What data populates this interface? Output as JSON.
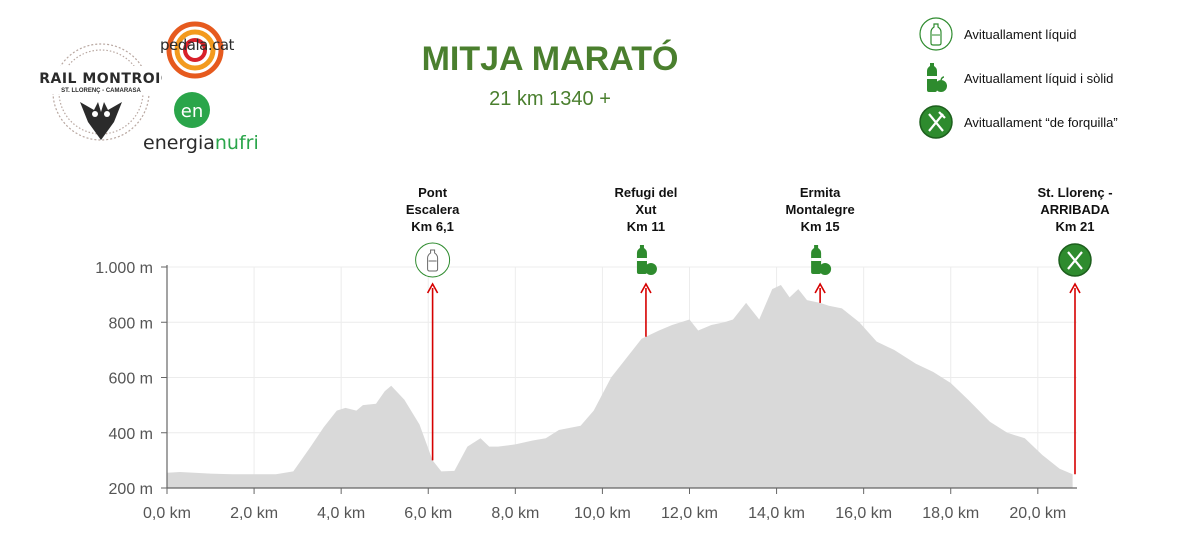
{
  "header": {
    "title": "MITJA MARATÓ",
    "subtitle": "21 km 1340 +"
  },
  "logos": {
    "trail_name": "TRAIL MONTROIG",
    "trail_place": "ST. LLORENÇ - CAMARASA",
    "pedala": "pedala.cat",
    "energia_prefix": "energia",
    "energia_suffix": "nufri",
    "energia_mark": "en"
  },
  "legend": [
    {
      "icon": "water-bottle-icon",
      "label": "Avituallament líquid"
    },
    {
      "icon": "bottle-apple-icon",
      "label": "Avituallament líquid i sòlid"
    },
    {
      "icon": "fork-knife-icon",
      "label": "Avituallament “de forquilla”"
    }
  ],
  "colors": {
    "title_green": "#4a7f2e",
    "profile_fill": "#d9d9d9",
    "marker_red": "#d60000",
    "icon_green": "#2e8b2e"
  },
  "chart_data": {
    "type": "area",
    "title": "MITJA MARATÓ",
    "subtitle": "21 km 1340 +",
    "xlabel": "",
    "ylabel": "",
    "xlim": [
      0,
      20.9
    ],
    "ylim": [
      200,
      1000
    ],
    "x_ticks": [
      0,
      2,
      4,
      6,
      8,
      10,
      12,
      14,
      16,
      18,
      20
    ],
    "x_tick_labels": [
      "0,0 km",
      "2,0 km",
      "4,0 km",
      "6,0 km",
      "8,0 km",
      "10,0 km",
      "12,0 km",
      "14,0 km",
      "16,0 km",
      "18,0 km",
      "20,0 km"
    ],
    "y_ticks": [
      200,
      400,
      600,
      800,
      1000
    ],
    "y_tick_labels": [
      "200 m",
      "400 m",
      "600 m",
      "800 m",
      "1.000 m"
    ],
    "grid": true,
    "series": [
      {
        "x": [
          0,
          0.3,
          1,
          1.5,
          2,
          2.5,
          2.9,
          3.3,
          3.6,
          3.9,
          4.1,
          4.35,
          4.5,
          4.8,
          5.0,
          5.15,
          5.45,
          5.8,
          6.1,
          6.3,
          6.6,
          6.9,
          7.2,
          7.4,
          7.6,
          8.0,
          8.4,
          8.7,
          9.0,
          9.5,
          9.8,
          10.2,
          10.5,
          10.9,
          11.3,
          11.6,
          11.8,
          12.0,
          12.2,
          12.5,
          12.8,
          13.0,
          13.3,
          13.6,
          13.9,
          14.1,
          14.3,
          14.5,
          14.7,
          15.0,
          15.2,
          15.5,
          15.9,
          16.3,
          16.7,
          17.2,
          17.6,
          18.0,
          18.4,
          18.9,
          19.3,
          19.7,
          20.1,
          20.5,
          20.8
        ],
        "values": [
          255,
          258,
          252,
          250,
          250,
          250,
          260,
          350,
          420,
          480,
          490,
          480,
          500,
          505,
          550,
          570,
          520,
          430,
          300,
          260,
          262,
          350,
          380,
          350,
          350,
          358,
          372,
          380,
          410,
          425,
          480,
          600,
          660,
          740,
          770,
          790,
          800,
          810,
          770,
          790,
          800,
          810,
          870,
          810,
          920,
          935,
          890,
          920,
          880,
          870,
          860,
          850,
          800,
          730,
          700,
          650,
          620,
          580,
          520,
          440,
          400,
          380,
          320,
          270,
          250
        ]
      }
    ],
    "markers": [
      {
        "x": 6.1,
        "label_lines": [
          "Pont",
          "Escalera",
          "Km 6,1"
        ],
        "icon": "water-bottle-icon"
      },
      {
        "x": 11,
        "label_lines": [
          "Refugi del",
          "Xut",
          "Km 11"
        ],
        "icon": "bottle-apple-icon"
      },
      {
        "x": 15,
        "label_lines": [
          "Ermita",
          "Montalegre",
          "Km 15"
        ],
        "icon": "bottle-apple-icon"
      },
      {
        "x": 21,
        "label_lines": [
          "St. Llorenç -",
          "ARRIBADA",
          "Km 21"
        ],
        "icon": "fork-knife-icon"
      }
    ]
  }
}
